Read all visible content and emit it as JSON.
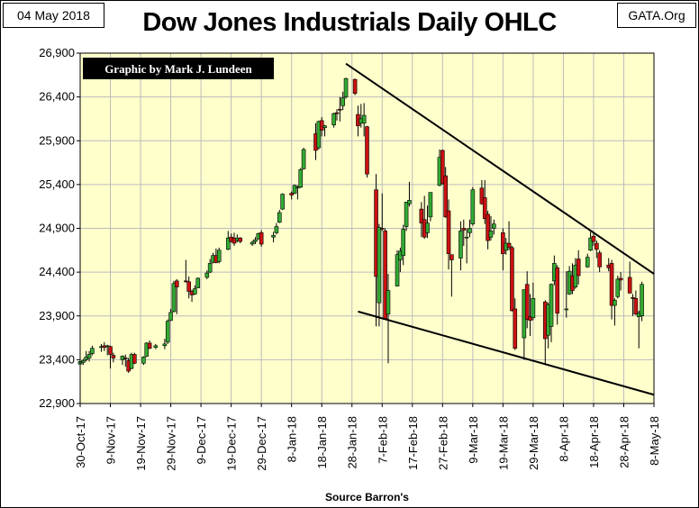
{
  "header": {
    "date": "04 May 2018",
    "title": "Dow Jones Industrials Daily OHLC",
    "site": "GATA.Org"
  },
  "chart_data": {
    "type": "candlestick",
    "title": "Dow Jones Industrials Daily OHLC",
    "credit": "Graphic by Mark J. Lundeen",
    "source": "Source Barron's",
    "ylim": [
      22900,
      26900
    ],
    "y_ticks": [
      22900,
      23400,
      23900,
      24400,
      24900,
      25400,
      25900,
      26400,
      26900
    ],
    "y_tick_labels": [
      "22,900",
      "23,400",
      "23,900",
      "24,400",
      "24,900",
      "25,400",
      "25,900",
      "26,400",
      "26,900"
    ],
    "x_tick_labels": [
      "30-Oct-17",
      "9-Nov-17",
      "19-Nov-17",
      "29-Nov-17",
      "9-Dec-17",
      "19-Dec-17",
      "29-Dec-17",
      "8-Jan-18",
      "18-Jan-18",
      "28-Jan-18",
      "7-Feb-18",
      "17-Feb-18",
      "27-Feb-18",
      "9-Mar-18",
      "19-Mar-18",
      "29-Mar-18",
      "8-Apr-18",
      "18-Apr-18",
      "28-Apr-18",
      "8-May-18"
    ],
    "x_start": "2017-10-30",
    "x_end": "2018-05-08",
    "colors": {
      "up": "#33aa33",
      "down": "#cc1111",
      "background": "#ffffcc",
      "grid": "#bbbbbb"
    },
    "bars": [
      [
        "2017-10-30",
        23350,
        23420,
        23330,
        23380
      ],
      [
        "2017-10-31",
        23370,
        23410,
        23340,
        23390
      ],
      [
        "2017-11-01",
        23400,
        23500,
        23380,
        23430
      ],
      [
        "2017-11-02",
        23420,
        23500,
        23380,
        23460
      ],
      [
        "2017-11-03",
        23470,
        23560,
        23450,
        23530
      ],
      [
        "2017-11-06",
        23540,
        23580,
        23490,
        23550
      ],
      [
        "2017-11-07",
        23560,
        23600,
        23500,
        23540
      ],
      [
        "2017-11-08",
        23550,
        23570,
        23450,
        23560
      ],
      [
        "2017-11-09",
        23550,
        23560,
        23300,
        23460
      ],
      [
        "2017-11-10",
        23450,
        23480,
        23370,
        23420
      ],
      [
        "2017-11-13",
        23400,
        23450,
        23340,
        23440
      ],
      [
        "2017-11-14",
        23420,
        23460,
        23320,
        23410
      ],
      [
        "2017-11-15",
        23390,
        23420,
        23250,
        23270
      ],
      [
        "2017-11-16",
        23300,
        23480,
        23290,
        23460
      ],
      [
        "2017-11-17",
        23460,
        23480,
        23350,
        23360
      ],
      [
        "2017-11-20",
        23360,
        23440,
        23340,
        23430
      ],
      [
        "2017-11-21",
        23440,
        23600,
        23430,
        23590
      ],
      [
        "2017-11-22",
        23590,
        23620,
        23520,
        23530
      ],
      [
        "2017-11-24",
        23540,
        23580,
        23520,
        23560
      ],
      [
        "2017-11-27",
        23560,
        23640,
        23520,
        23580
      ],
      [
        "2017-11-28",
        23600,
        23860,
        23580,
        23840
      ],
      [
        "2017-11-29",
        23850,
        23980,
        23840,
        23940
      ],
      [
        "2017-11-30",
        23950,
        24300,
        23940,
        24270
      ],
      [
        "2017-12-01",
        24300,
        24320,
        23920,
        24230
      ],
      [
        "2017-12-04",
        24300,
        24540,
        24280,
        24290
      ],
      [
        "2017-12-05",
        24290,
        24350,
        24100,
        24180
      ],
      [
        "2017-12-06",
        24180,
        24200,
        24060,
        24140
      ],
      [
        "2017-12-07",
        24150,
        24250,
        24140,
        24210
      ],
      [
        "2017-12-08",
        24220,
        24340,
        24220,
        24330
      ],
      [
        "2017-12-11",
        24340,
        24420,
        24320,
        24390
      ],
      [
        "2017-12-12",
        24400,
        24550,
        24390,
        24500
      ],
      [
        "2017-12-13",
        24510,
        24620,
        24500,
        24590
      ],
      [
        "2017-12-14",
        24590,
        24670,
        24500,
        24510
      ],
      [
        "2017-12-15",
        24520,
        24680,
        24500,
        24650
      ],
      [
        "2017-12-18",
        24660,
        24870,
        24650,
        24790
      ],
      [
        "2017-12-19",
        24800,
        24840,
        24740,
        24750
      ],
      [
        "2017-12-20",
        24790,
        24850,
        24700,
        24730
      ],
      [
        "2017-12-21",
        24760,
        24830,
        24740,
        24790
      ],
      [
        "2017-12-22",
        24790,
        24800,
        24730,
        24750
      ],
      [
        "2017-12-26",
        24720,
        24760,
        24700,
        24740
      ],
      [
        "2017-12-27",
        24750,
        24800,
        24720,
        24770
      ],
      [
        "2017-12-28",
        24780,
        24850,
        24770,
        24840
      ],
      [
        "2017-12-29",
        24850,
        24880,
        24690,
        24720
      ],
      [
        "2018-01-02",
        24800,
        24860,
        24740,
        24820
      ],
      [
        "2018-01-03",
        24850,
        24960,
        24830,
        24920
      ],
      [
        "2018-01-04",
        24970,
        25110,
        24960,
        25080
      ],
      [
        "2018-01-05",
        25120,
        25300,
        25110,
        25290
      ],
      [
        "2018-01-08",
        25300,
        25320,
        25230,
        25280
      ],
      [
        "2018-01-09",
        25300,
        25400,
        25290,
        25390
      ],
      [
        "2018-01-10",
        25360,
        25390,
        25230,
        25370
      ],
      [
        "2018-01-11",
        25370,
        25590,
        25360,
        25570
      ],
      [
        "2018-01-12",
        25580,
        25820,
        25570,
        25800
      ],
      [
        "2018-01-16",
        25980,
        26100,
        25680,
        25790
      ],
      [
        "2018-01-17",
        25820,
        26130,
        25800,
        26120
      ],
      [
        "2018-01-18",
        26130,
        26170,
        25950,
        26020
      ],
      [
        "2018-01-19",
        26050,
        26080,
        25950,
        26070
      ],
      [
        "2018-01-22",
        26080,
        26220,
        26050,
        26210
      ],
      [
        "2018-01-23",
        26220,
        26260,
        26130,
        26210
      ],
      [
        "2018-01-24",
        26260,
        26400,
        26120,
        26250
      ],
      [
        "2018-01-25",
        26300,
        26460,
        26250,
        26390
      ],
      [
        "2018-01-26",
        26400,
        26620,
        26380,
        26610
      ],
      [
        "2018-01-29",
        26600,
        26610,
        26420,
        26440
      ],
      [
        "2018-01-30",
        26200,
        26300,
        25950,
        26070
      ],
      [
        "2018-01-31",
        26100,
        26320,
        26050,
        26150
      ],
      [
        "2018-02-01",
        26100,
        26330,
        25950,
        26190
      ],
      [
        "2018-02-02",
        26060,
        26070,
        25480,
        25520
      ],
      [
        "2018-02-05",
        25340,
        25520,
        23780,
        24350
      ],
      [
        "2018-02-06",
        24050,
        24950,
        23780,
        24910
      ],
      [
        "2018-02-07",
        24900,
        25300,
        24870,
        24890
      ],
      [
        "2018-02-08",
        24870,
        24900,
        23870,
        23860
      ],
      [
        "2018-02-09",
        23920,
        24380,
        23360,
        24190
      ],
      [
        "2018-02-12",
        24240,
        24650,
        24240,
        24600
      ],
      [
        "2018-02-13",
        24540,
        24680,
        24400,
        24640
      ],
      [
        "2018-02-14",
        24590,
        24940,
        24480,
        24890
      ],
      [
        "2018-02-15",
        24920,
        25200,
        24870,
        25200
      ],
      [
        "2018-02-16",
        25180,
        25430,
        25150,
        25220
      ],
      [
        "2018-02-20",
        25120,
        25200,
        24800,
        24960
      ],
      [
        "2018-02-21",
        25000,
        25270,
        24780,
        24800
      ],
      [
        "2018-02-22",
        24850,
        25160,
        24790,
        24960
      ],
      [
        "2018-02-23",
        25030,
        25310,
        24980,
        25310
      ],
      [
        "2018-02-26",
        25390,
        25800,
        25380,
        25710
      ],
      [
        "2018-02-27",
        25790,
        25800,
        25400,
        25410
      ],
      [
        "2018-02-28",
        25500,
        25600,
        25020,
        25030
      ],
      [
        "2018-03-01",
        25100,
        25230,
        24430,
        24610
      ],
      [
        "2018-03-02",
        24600,
        24600,
        24120,
        24540
      ],
      [
        "2018-03-05",
        24560,
        24980,
        24420,
        24870
      ],
      [
        "2018-03-06",
        24900,
        25000,
        24700,
        24880
      ],
      [
        "2018-03-07",
        24800,
        24900,
        24500,
        24800
      ],
      [
        "2018-03-08",
        24850,
        25000,
        24800,
        24900
      ],
      [
        "2018-03-09",
        24950,
        25370,
        24930,
        25340
      ],
      [
        "2018-03-12",
        25360,
        25450,
        25170,
        25180
      ],
      [
        "2018-03-13",
        25250,
        25450,
        24950,
        25010
      ],
      [
        "2018-03-14",
        25060,
        25100,
        24660,
        24760
      ],
      [
        "2018-03-15",
        24800,
        25040,
        24760,
        24870
      ],
      [
        "2018-03-16",
        24900,
        25000,
        24830,
        24950
      ],
      [
        "2018-03-19",
        24850,
        24900,
        24420,
        24610
      ],
      [
        "2018-03-20",
        24650,
        24790,
        24600,
        24730
      ],
      [
        "2018-03-21",
        24730,
        24980,
        24650,
        24680
      ],
      [
        "2018-03-22",
        24680,
        24700,
        23950,
        23960
      ],
      [
        "2018-03-23",
        23980,
        24100,
        23510,
        23530
      ],
      [
        "2018-03-26",
        23650,
        24200,
        23400,
        24200
      ],
      [
        "2018-03-27",
        24260,
        24410,
        23760,
        23860
      ],
      [
        "2018-03-28",
        23890,
        24150,
        23670,
        23850
      ],
      [
        "2018-03-29",
        23880,
        24280,
        23850,
        24100
      ],
      [
        "2018-04-02",
        24060,
        24080,
        23340,
        23640
      ],
      [
        "2018-04-03",
        23680,
        24050,
        23530,
        24030
      ],
      [
        "2018-04-04",
        23780,
        24270,
        23600,
        24260
      ],
      [
        "2018-04-05",
        24300,
        24590,
        24250,
        24500
      ],
      [
        "2018-04-06",
        24450,
        24480,
        23800,
        23930
      ],
      [
        "2018-04-09",
        23970,
        24410,
        23880,
        23980
      ],
      [
        "2018-04-10",
        24150,
        24470,
        24140,
        24410
      ],
      [
        "2018-04-11",
        24360,
        24500,
        24150,
        24190
      ],
      [
        "2018-04-12",
        24230,
        24560,
        24210,
        24480
      ],
      [
        "2018-04-13",
        24550,
        24650,
        24260,
        24360
      ],
      [
        "2018-04-16",
        24460,
        24610,
        24450,
        24570
      ],
      [
        "2018-04-17",
        24650,
        24860,
        24640,
        24790
      ],
      [
        "2018-04-18",
        24810,
        24860,
        24700,
        24750
      ],
      [
        "2018-04-19",
        24730,
        24760,
        24560,
        24660
      ],
      [
        "2018-04-20",
        24620,
        24650,
        24400,
        24460
      ],
      [
        "2018-04-23",
        24480,
        24560,
        24410,
        24450
      ],
      [
        "2018-04-24",
        24500,
        24540,
        23860,
        24020
      ],
      [
        "2018-04-25",
        24020,
        24100,
        23790,
        24080
      ],
      [
        "2018-04-26",
        24120,
        24360,
        24100,
        24320
      ],
      [
        "2018-04-27",
        24330,
        24400,
        24190,
        24310
      ],
      [
        "2018-04-30",
        24340,
        24520,
        24160,
        24160
      ],
      [
        "2018-05-01",
        24110,
        24150,
        23900,
        24100
      ],
      [
        "2018-05-02",
        24100,
        24190,
        23910,
        23920
      ],
      [
        "2018-05-03",
        23890,
        23960,
        23530,
        23930
      ],
      [
        "2018-05-04",
        23900,
        24290,
        23840,
        24260
      ]
    ],
    "trendlines": [
      {
        "from": [
          "2018-01-26",
          26780
        ],
        "to": [
          "2018-05-08",
          24380
        ]
      },
      {
        "from": [
          "2018-01-30",
          23950
        ],
        "to": [
          "2018-05-08",
          23000
        ]
      }
    ]
  }
}
